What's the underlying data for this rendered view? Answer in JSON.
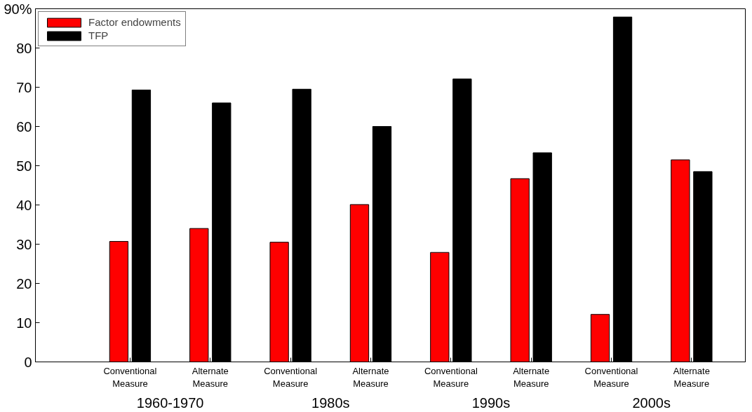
{
  "chart_data": {
    "type": "bar",
    "categories": [
      "Conventional\nMeasure",
      "Alternate\nMeasure",
      "Conventional\nMeasure",
      "Alternate\nMeasure",
      "Conventional\nMeasure",
      "Alternate\nMeasure",
      "Conventional\nMeasure",
      "Alternate\nMeasure"
    ],
    "series": [
      {
        "name": "Factor endowments",
        "color": "#ff0000",
        "values": [
          30.7,
          34.0,
          30.5,
          40.1,
          27.9,
          46.7,
          12.1,
          51.5
        ]
      },
      {
        "name": "TFP",
        "color": "#000000",
        "values": [
          69.3,
          66.0,
          69.5,
          60.0,
          72.1,
          53.3,
          87.9,
          48.5
        ]
      }
    ],
    "annotations": [
      "1960-1970",
      "1980s",
      "1990s",
      "2000s"
    ],
    "ylim": [
      0,
      90
    ],
    "yticks": [
      0,
      10,
      20,
      30,
      40,
      50,
      60,
      70,
      80,
      {
        "value": 90,
        "label": "90%"
      }
    ],
    "grid": false,
    "legend": "top left"
  }
}
